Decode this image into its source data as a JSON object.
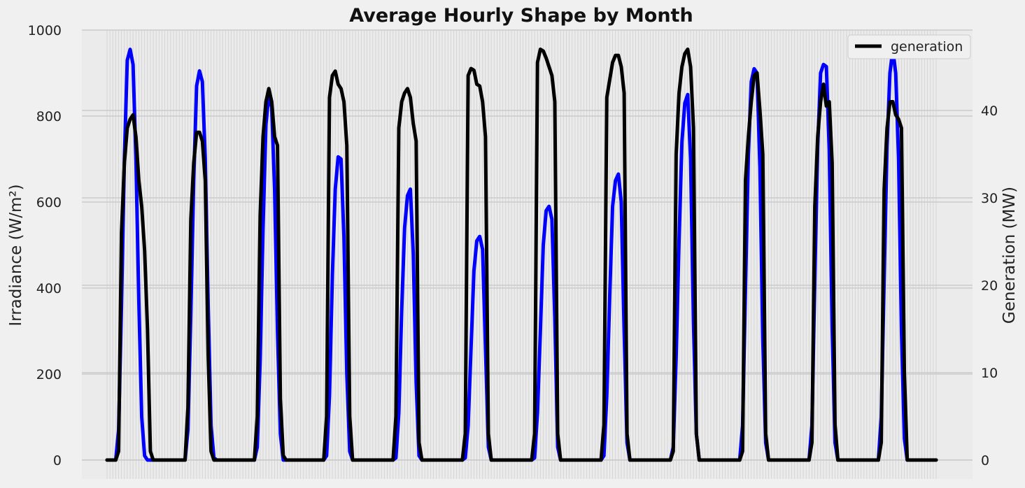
{
  "chart_data": {
    "type": "line",
    "title": "Average Hourly Shape by Month",
    "xlabel": "",
    "ylabel": "Irradiance (W/m²)",
    "y2label": "Generation (MW)",
    "ylim": [
      0,
      1000
    ],
    "y2lim": [
      0,
      49.2
    ],
    "yticks": [
      "0",
      "200",
      "400",
      "600",
      "800",
      "1000"
    ],
    "y2ticks": [
      "0",
      "10",
      "20",
      "30",
      "40"
    ],
    "grid": true,
    "legend_position": "top-right",
    "months": 12,
    "hours_per_month": 24,
    "series": [
      {
        "key": "irradiance",
        "axis": "left",
        "color": "#0000ff",
        "values": [
          0,
          0,
          0,
          0,
          70,
          360,
          700,
          930,
          955,
          920,
          700,
          370,
          100,
          10,
          0,
          0,
          0,
          0,
          0,
          0,
          0,
          0,
          0,
          0,
          0,
          0,
          0,
          0,
          70,
          340,
          650,
          870,
          905,
          880,
          700,
          360,
          80,
          5,
          0,
          0,
          0,
          0,
          0,
          0,
          0,
          0,
          0,
          0,
          0,
          0,
          0,
          0,
          30,
          230,
          540,
          780,
          850,
          820,
          630,
          300,
          60,
          0,
          0,
          0,
          0,
          0,
          0,
          0,
          0,
          0,
          0,
          0,
          0,
          0,
          0,
          0,
          10,
          150,
          430,
          630,
          705,
          700,
          520,
          200,
          20,
          0,
          0,
          0,
          0,
          0,
          0,
          0,
          0,
          0,
          0,
          0,
          0,
          0,
          0,
          0,
          5,
          110,
          350,
          540,
          615,
          630,
          480,
          180,
          10,
          0,
          0,
          0,
          0,
          0,
          0,
          0,
          0,
          0,
          0,
          0,
          0,
          0,
          0,
          0,
          5,
          80,
          260,
          440,
          510,
          520,
          490,
          260,
          30,
          0,
          0,
          0,
          0,
          0,
          0,
          0,
          0,
          0,
          0,
          0,
          0,
          0,
          0,
          0,
          5,
          110,
          300,
          500,
          580,
          590,
          560,
          330,
          30,
          0,
          0,
          0,
          0,
          0,
          0,
          0,
          0,
          0,
          0,
          0,
          0,
          0,
          0,
          0,
          10,
          150,
          380,
          590,
          650,
          665,
          600,
          300,
          40,
          0,
          0,
          0,
          0,
          0,
          0,
          0,
          0,
          0,
          0,
          0,
          0,
          0,
          0,
          0,
          30,
          240,
          510,
          740,
          830,
          850,
          700,
          320,
          60,
          0,
          0,
          0,
          0,
          0,
          0,
          0,
          0,
          0,
          0,
          0,
          0,
          0,
          0,
          0,
          80,
          400,
          710,
          880,
          910,
          900,
          680,
          280,
          40,
          0,
          0,
          0,
          0,
          0,
          0,
          0,
          0,
          0,
          0,
          0,
          0,
          0,
          0,
          0,
          80,
          420,
          730,
          900,
          920,
          915,
          720,
          310,
          40,
          0,
          0,
          0,
          0,
          0,
          0,
          0,
          0,
          0,
          0,
          0,
          0,
          0,
          0,
          0,
          100,
          420,
          730,
          900,
          955,
          900,
          700,
          300,
          50,
          0,
          0,
          0,
          0,
          0,
          0,
          0,
          0,
          0,
          0,
          0
        ]
      },
      {
        "key": "generation",
        "name": "generation",
        "axis": "right",
        "color": "#000000",
        "values": [
          0,
          0,
          0,
          0,
          1,
          26,
          34,
          38,
          39,
          39.5,
          37,
          32,
          29,
          24,
          15,
          1,
          0,
          0,
          0,
          0,
          0,
          0,
          0,
          0,
          0,
          0,
          0,
          0,
          6,
          27.5,
          34,
          37.5,
          37.5,
          36.5,
          32,
          12,
          1,
          0,
          0,
          0,
          0,
          0,
          0,
          0,
          0,
          0,
          0,
          0,
          0,
          0,
          0,
          0,
          5,
          28,
          37,
          41,
          42.5,
          41,
          37,
          36,
          7,
          0.5,
          0,
          0,
          0,
          0,
          0,
          0,
          0,
          0,
          0,
          0,
          0,
          0,
          0,
          0,
          5,
          41.5,
          44,
          44.5,
          43,
          42.5,
          41,
          36,
          5,
          0,
          0,
          0,
          0,
          0,
          0,
          0,
          0,
          0,
          0,
          0,
          0,
          0,
          0,
          0,
          5,
          38,
          41,
          42,
          42.5,
          41.5,
          38.5,
          36.5,
          2,
          0,
          0,
          0,
          0,
          0,
          0,
          0,
          0,
          0,
          0,
          0,
          0,
          0,
          0,
          0,
          3,
          44,
          44.8,
          44.6,
          43,
          42.8,
          41,
          37,
          3,
          0,
          0,
          0,
          0,
          0,
          0,
          0,
          0,
          0,
          0,
          0,
          0,
          0,
          0,
          0,
          3,
          45.5,
          47,
          46.8,
          46,
          45,
          44,
          41,
          3,
          0,
          0,
          0,
          0,
          0,
          0,
          0,
          0,
          0,
          0,
          0,
          0,
          0,
          0,
          0,
          4,
          41.5,
          43.5,
          45.5,
          46.3,
          46.3,
          45,
          42,
          3,
          0,
          0,
          0,
          0,
          0,
          0,
          0,
          0,
          0,
          0,
          0,
          0,
          0,
          0,
          0,
          1,
          35,
          42,
          45,
          46.5,
          47,
          45,
          38,
          3,
          0,
          0,
          0,
          0,
          0,
          0,
          0,
          0,
          0,
          0,
          0,
          0,
          0,
          0,
          0,
          1,
          32,
          37,
          41,
          44,
          44.3,
          40,
          35,
          3,
          0,
          0,
          0,
          0,
          0,
          0,
          0,
          0,
          0,
          0,
          0,
          0,
          0,
          0,
          0,
          2,
          29,
          37,
          41,
          43,
          40.5,
          41,
          34,
          4,
          0,
          0,
          0,
          0,
          0,
          0,
          0,
          0,
          0,
          0,
          0,
          0,
          0,
          0,
          0,
          2,
          31,
          38,
          41,
          41,
          39.5,
          39,
          38,
          10,
          0,
          0,
          0,
          0,
          0,
          0,
          0,
          0,
          0,
          0,
          0
        ]
      }
    ],
    "legend": [
      {
        "label": "generation",
        "color": "#000000"
      }
    ]
  }
}
